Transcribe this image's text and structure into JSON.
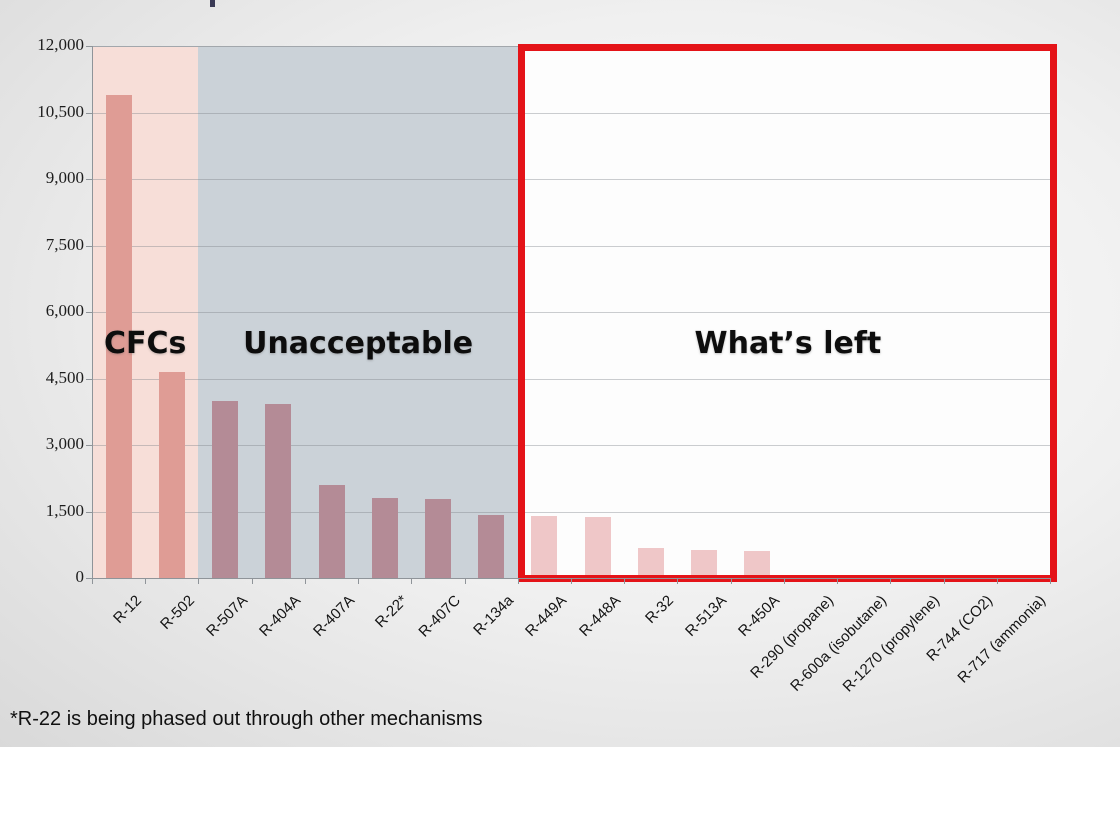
{
  "footnote": "*R-22 is being phased out through other mechanisms",
  "chart_data": {
    "type": "bar",
    "title": "",
    "xlabel": "",
    "ylabel": "",
    "ylim": [
      0,
      12000
    ],
    "ytick_values": [
      0,
      1500,
      3000,
      4500,
      6000,
      7500,
      9000,
      10500,
      12000
    ],
    "grid": true,
    "legend": false,
    "categories": [
      "R-12",
      "R-502",
      "R-507A",
      "R-404A",
      "R-407A",
      "R-22*",
      "R-407C",
      "R-134a",
      "R-449A",
      "R-448A",
      "R-32",
      "R-513A",
      "R-450A",
      "R-290 (propane)",
      "R-600a (isobutane)",
      "R-1270 (propylene)",
      "R-744 (CO2)",
      "R-717 (ammonia)"
    ],
    "values": [
      10900,
      4657,
      3985,
      3922,
      2107,
      1810,
      1774,
      1430,
      1397,
      1387,
      675,
      631,
      604,
      3,
      3,
      2,
      1,
      0
    ],
    "zones": [
      {
        "label": "CFCs",
        "categories": 2,
        "bg_color": "#f7ded8",
        "bar_color": "#df9c95"
      },
      {
        "label": "Unacceptable",
        "categories": 6,
        "bg_color": "#cbd2d8",
        "bar_color": "#b48b96"
      },
      {
        "label": "What’s left",
        "categories": 10,
        "bg_color": "#fdfdfd",
        "bar_color": "#efc7c8",
        "outline_color": "#e41318"
      }
    ]
  }
}
